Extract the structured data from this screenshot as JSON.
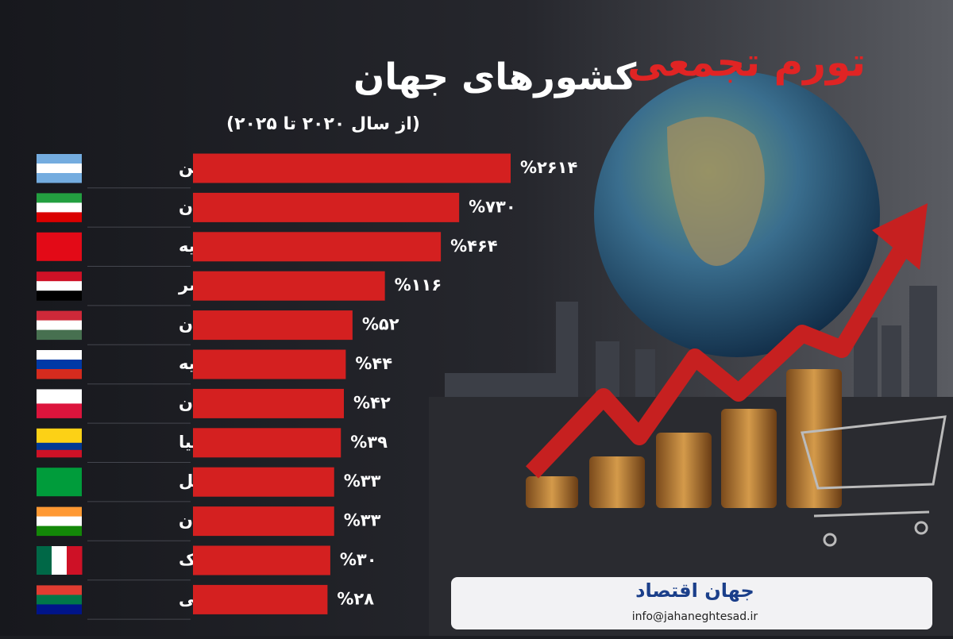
{
  "chart_data": {
    "type": "bar",
    "orientation": "horizontal",
    "title_highlight": "تورم تجمعی",
    "title": "کشورهای جهان",
    "subtitle": "(از سال ۲۰۲۰ تا ۲۰۲۵)",
    "categories": [
      "آرژانتین",
      "ایران",
      "ترکیه",
      "مصر",
      "مجارستان",
      "روسیه",
      "لهستان",
      "کلمبیا",
      "برزیل",
      "هندوستان",
      "مکزیک",
      "آفریقای جنوبی"
    ],
    "values": [
      2614,
      730,
      464,
      116,
      52,
      44,
      42,
      39,
      33,
      33,
      30,
      28
    ],
    "value_labels": [
      "%۲۶۱۴",
      "%۷۳۰",
      "%۴۶۴",
      "%۱۱۶",
      "%۵۲",
      "%۴۴",
      "%۴۲",
      "%۳۹",
      "%۳۳",
      "%۳۳",
      "%۳۰",
      "%۲۸"
    ],
    "color": "#d42020",
    "log_scale": true
  },
  "footer": {
    "logo": "جهان اقتصاد",
    "email": "info@jahaneghtesad.ir"
  }
}
